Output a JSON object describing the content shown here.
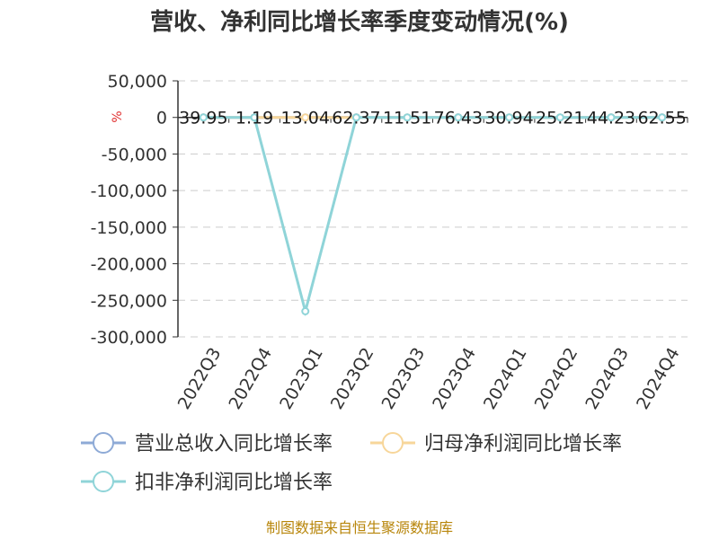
{
  "chart_data": {
    "type": "line",
    "title": "营收、净利同比增长率季度变动情况(%)",
    "unit_label": "%",
    "source": "制图数据来自恒生聚源数据库",
    "categories": [
      "2022Q3",
      "2022Q4",
      "2023Q1",
      "2023Q2",
      "2023Q3",
      "2023Q4",
      "2024Q1",
      "2024Q2",
      "2024Q3",
      "2024Q4"
    ],
    "ylim": [
      -300000,
      50000
    ],
    "yticks": [
      50000,
      0,
      -50000,
      -100000,
      -150000,
      -200000,
      -250000,
      -300000
    ],
    "ytick_labels": [
      "50,000",
      "0",
      "-50,000",
      "-100,000",
      "-150,000",
      "-200,000",
      "-250,000",
      "-300,000"
    ],
    "grid": true,
    "legend_position": "bottom",
    "series": [
      {
        "name": "营业总收入同比增长率",
        "color": "#8eaad6",
        "values": [
          39.95,
          1.19,
          13.04,
          62.37,
          11.51,
          76.43,
          30.94,
          25.21,
          44.23,
          62.55
        ],
        "labels": [
          "39.95",
          "1.19",
          "13.04",
          "62.37",
          "11.51",
          "76.43",
          "30.94",
          "25.21",
          "44.23",
          "62.55"
        ]
      },
      {
        "name": "归母净利润同比增长率",
        "color": "#f7d69a",
        "values": [
          0,
          0,
          0,
          0,
          0,
          0,
          0,
          0,
          0,
          0
        ]
      },
      {
        "name": "扣非净利润同比增长率",
        "color": "#8fd4d8",
        "values": [
          0,
          0,
          -265000,
          0,
          0,
          0,
          0,
          0,
          0,
          0
        ]
      }
    ]
  }
}
